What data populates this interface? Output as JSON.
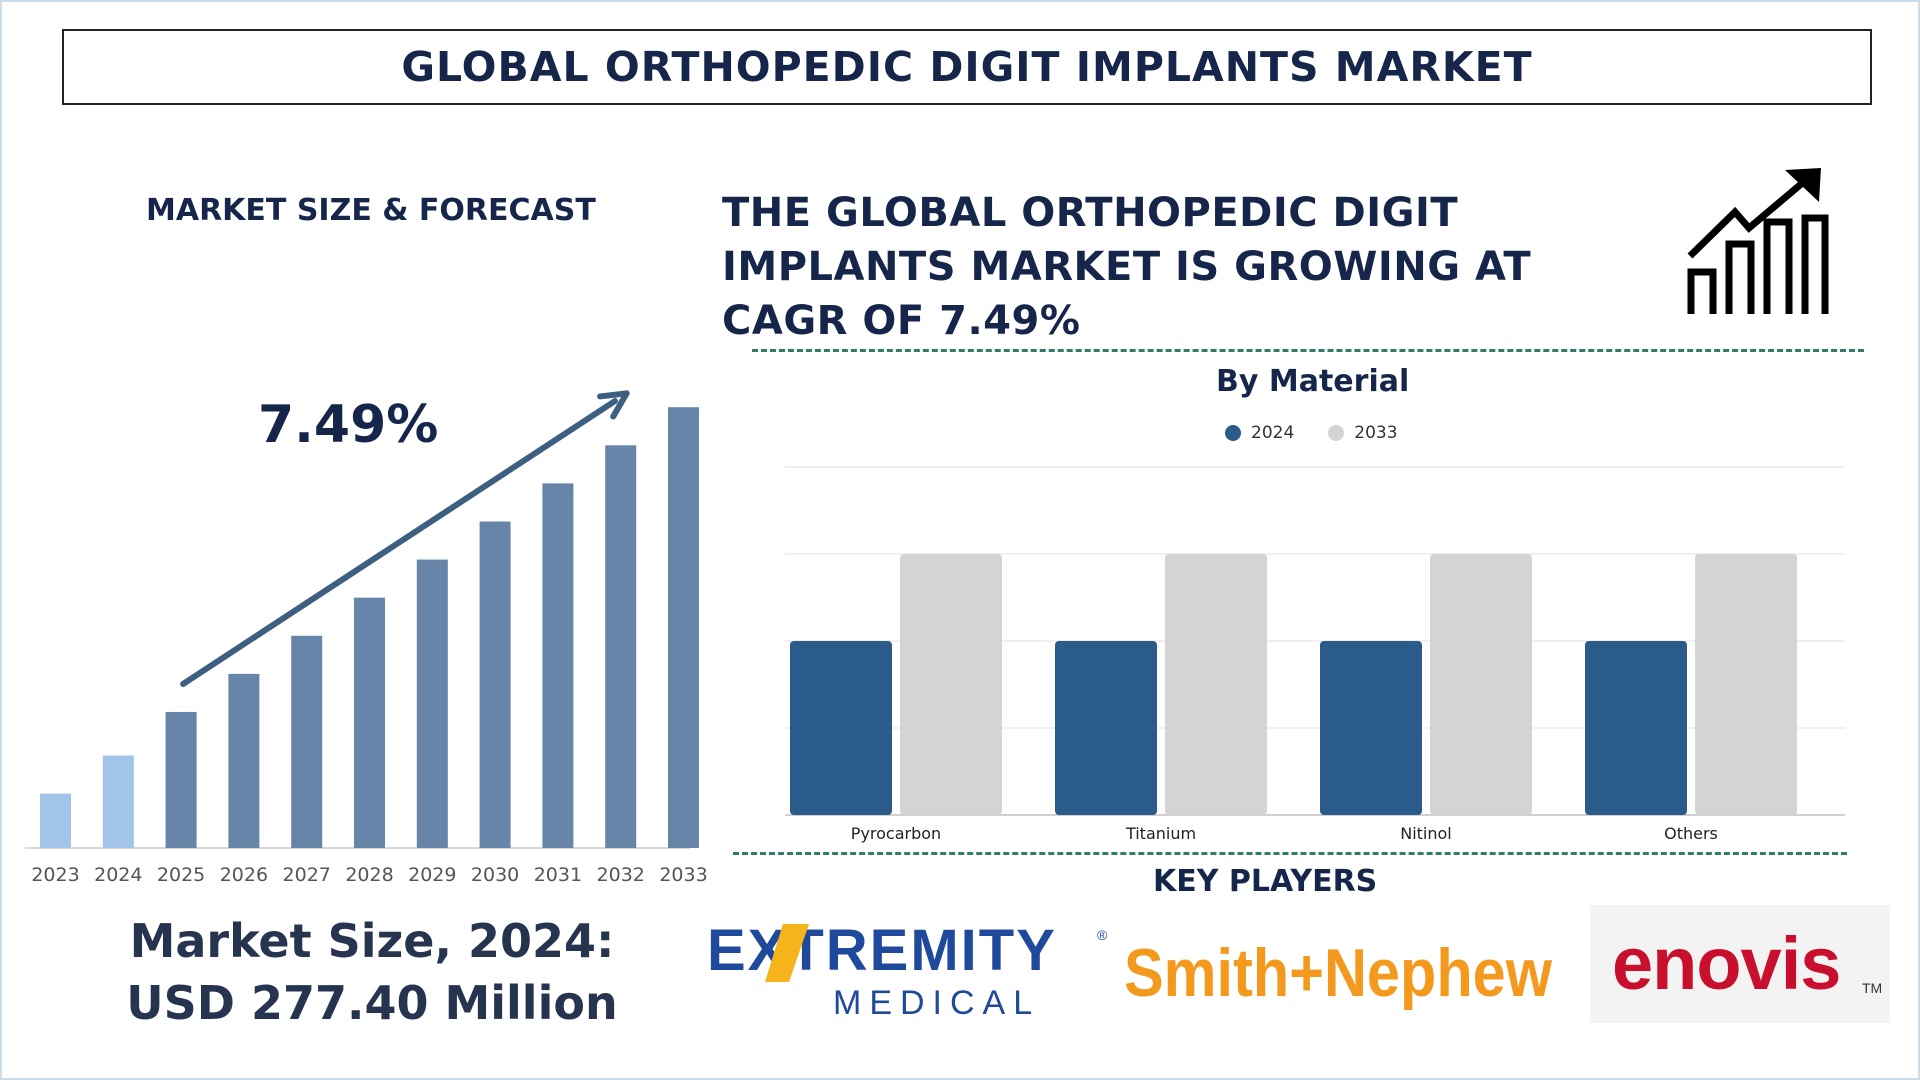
{
  "title": "GLOBAL ORTHOPEDIC DIGIT IMPLANTS MARKET",
  "market_size_forecast_label": "MARKET SIZE & FORECAST",
  "headline": "THE GLOBAL ORTHOPEDIC DIGIT IMPLANTS MARKET IS GROWING AT CAGR OF 7.49%",
  "cagr_label": "7.49%",
  "market_size_line1": "Market Size, 2024:",
  "market_size_line2": "USD 277.40 Million",
  "key_players_label": "KEY PLAYERS",
  "icons": {
    "growth": "growth-chart-icon"
  },
  "colors": {
    "navy": "#15264a",
    "bar_light": "#a2c4e8",
    "bar_dark": "#6685a8",
    "series_2024": "#2b5b8a",
    "series_2033": "#d4d4d4",
    "dash": "#2e7d6a",
    "arrow": "#3d5f82"
  },
  "logos": {
    "extremity_line1": "EXTREMITY",
    "extremity_reg": "®",
    "extremity_line2": "MEDICAL",
    "smith_nephew": "Smith+Nephew",
    "enovis": "enovis",
    "enovis_tm": "TM"
  },
  "chart_data": [
    {
      "type": "bar",
      "title": "MARKET SIZE & FORECAST",
      "categories": [
        "2023",
        "2024",
        "2025",
        "2026",
        "2027",
        "2028",
        "2029",
        "2030",
        "2031",
        "2032",
        "2033"
      ],
      "values": [
        1.0,
        1.7,
        2.5,
        3.2,
        3.9,
        4.6,
        5.3,
        6.0,
        6.7,
        7.4,
        8.1
      ],
      "annotation": "7.49%",
      "ylim": [
        0,
        8.6
      ]
    },
    {
      "type": "bar",
      "title": "By Material",
      "categories": [
        "Pyrocarbon",
        "Titanium",
        "Nitinol",
        "Others"
      ],
      "series": [
        {
          "name": "2024",
          "values": [
            2,
            2,
            2,
            2
          ]
        },
        {
          "name": "2033",
          "values": [
            3,
            3,
            3,
            3
          ]
        }
      ],
      "ylim": [
        0,
        4
      ],
      "grid": true,
      "legend": "top-center"
    }
  ]
}
